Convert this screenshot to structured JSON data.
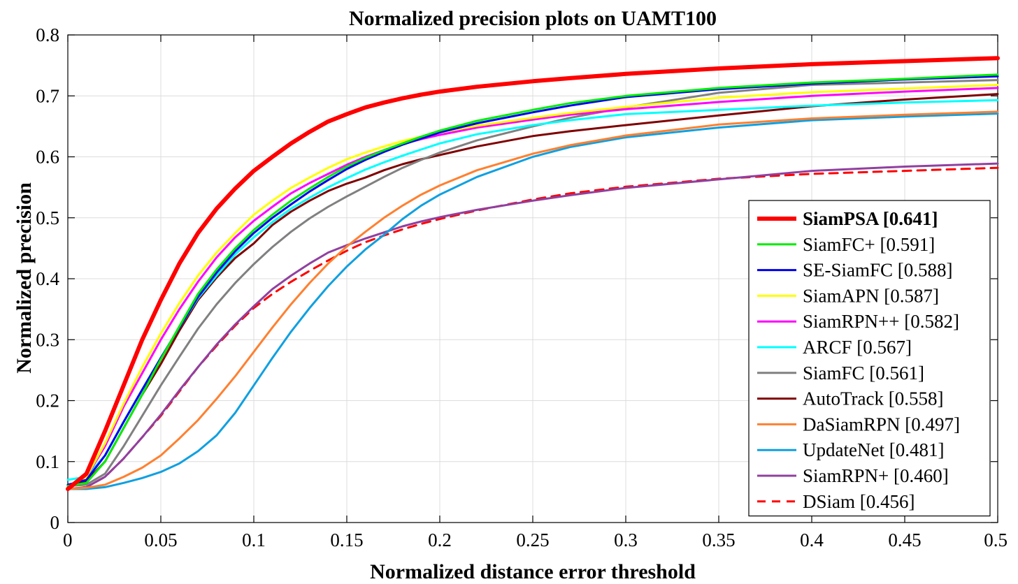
{
  "chart_data": {
    "type": "line",
    "title": "Normalized precision plots on UAMT100",
    "xlabel": "Normalized distance error threshold",
    "ylabel": "Normalized precision",
    "xlim": [
      0,
      0.5
    ],
    "ylim": [
      0,
      0.8
    ],
    "xticks": [
      "0",
      "0.05",
      "0.1",
      "0.15",
      "0.2",
      "0.25",
      "0.3",
      "0.35",
      "0.4",
      "0.45",
      "0.5"
    ],
    "yticks": [
      "0",
      "0.1",
      "0.2",
      "0.3",
      "0.4",
      "0.5",
      "0.6",
      "0.7",
      "0.8"
    ],
    "grid": true,
    "legend_position": "bottom-right",
    "x": [
      0,
      0.01,
      0.02,
      0.03,
      0.04,
      0.05,
      0.06,
      0.07,
      0.08,
      0.09,
      0.1,
      0.11,
      0.12,
      0.13,
      0.14,
      0.15,
      0.16,
      0.17,
      0.18,
      0.19,
      0.2,
      0.22,
      0.25,
      0.27,
      0.3,
      0.35,
      0.4,
      0.45,
      0.5
    ],
    "series": [
      {
        "name": "SiamPSA [0.641]",
        "color": "#ff0000",
        "width": 6,
        "dash": false,
        "bold": true,
        "values": [
          0.055,
          0.08,
          0.15,
          0.225,
          0.3,
          0.365,
          0.425,
          0.475,
          0.515,
          0.548,
          0.577,
          0.6,
          0.622,
          0.641,
          0.658,
          0.67,
          0.681,
          0.689,
          0.696,
          0.702,
          0.707,
          0.715,
          0.724,
          0.729,
          0.736,
          0.745,
          0.752,
          0.757,
          0.762
        ]
      },
      {
        "name": "SiamFC+ [0.591]",
        "color": "#00ee00",
        "width": 3,
        "dash": false,
        "values": [
          0.06,
          0.065,
          0.1,
          0.155,
          0.21,
          0.268,
          0.322,
          0.375,
          0.415,
          0.45,
          0.48,
          0.505,
          0.528,
          0.548,
          0.567,
          0.584,
          0.598,
          0.611,
          0.622,
          0.633,
          0.643,
          0.659,
          0.677,
          0.688,
          0.7,
          0.713,
          0.722,
          0.728,
          0.735
        ]
      },
      {
        "name": "SE-SiamFC [0.588]",
        "color": "#0000ee",
        "width": 3,
        "dash": false,
        "values": [
          0.062,
          0.07,
          0.11,
          0.165,
          0.218,
          0.27,
          0.32,
          0.37,
          0.41,
          0.445,
          0.475,
          0.5,
          0.522,
          0.543,
          0.562,
          0.58,
          0.595,
          0.608,
          0.62,
          0.63,
          0.64,
          0.655,
          0.673,
          0.684,
          0.698,
          0.711,
          0.72,
          0.727,
          0.732
        ]
      },
      {
        "name": "SiamAPN [0.587]",
        "color": "#ffff00",
        "width": 3,
        "dash": false,
        "values": [
          0.06,
          0.075,
          0.13,
          0.195,
          0.255,
          0.31,
          0.36,
          0.405,
          0.443,
          0.475,
          0.505,
          0.528,
          0.549,
          0.566,
          0.582,
          0.596,
          0.607,
          0.617,
          0.626,
          0.633,
          0.64,
          0.651,
          0.664,
          0.672,
          0.682,
          0.697,
          0.706,
          0.712,
          0.718
        ]
      },
      {
        "name": "SiamRPN++ [0.582]",
        "color": "#ff00ff",
        "width": 3,
        "dash": false,
        "values": [
          0.06,
          0.075,
          0.125,
          0.19,
          0.245,
          0.3,
          0.35,
          0.395,
          0.435,
          0.468,
          0.495,
          0.518,
          0.54,
          0.557,
          0.572,
          0.587,
          0.6,
          0.611,
          0.621,
          0.629,
          0.636,
          0.648,
          0.661,
          0.669,
          0.678,
          0.69,
          0.7,
          0.707,
          0.713
        ]
      },
      {
        "name": "ARCF [0.567]",
        "color": "#00ffff",
        "width": 3,
        "dash": false,
        "values": [
          0.07,
          0.075,
          0.11,
          0.165,
          0.218,
          0.27,
          0.32,
          0.368,
          0.405,
          0.44,
          0.468,
          0.493,
          0.515,
          0.533,
          0.55,
          0.565,
          0.579,
          0.591,
          0.602,
          0.612,
          0.622,
          0.637,
          0.652,
          0.66,
          0.67,
          0.677,
          0.684,
          0.689,
          0.693
        ]
      },
      {
        "name": "SiamFC [0.561]",
        "color": "#808080",
        "width": 3,
        "dash": false,
        "values": [
          0.06,
          0.062,
          0.08,
          0.125,
          0.175,
          0.225,
          0.272,
          0.318,
          0.358,
          0.393,
          0.424,
          0.452,
          0.477,
          0.499,
          0.518,
          0.535,
          0.551,
          0.567,
          0.582,
          0.595,
          0.607,
          0.627,
          0.65,
          0.664,
          0.681,
          0.705,
          0.718,
          0.722,
          0.726
        ]
      },
      {
        "name": "AutoTrack [0.558]",
        "color": "#800000",
        "width": 3,
        "dash": false,
        "values": [
          0.06,
          0.068,
          0.1,
          0.155,
          0.21,
          0.26,
          0.315,
          0.365,
          0.402,
          0.434,
          0.458,
          0.488,
          0.51,
          0.528,
          0.544,
          0.556,
          0.566,
          0.578,
          0.588,
          0.596,
          0.603,
          0.617,
          0.634,
          0.642,
          0.652,
          0.668,
          0.683,
          0.694,
          0.703
        ]
      },
      {
        "name": "DaSiamRPN [0.497]",
        "color": "#ff8030",
        "width": 3,
        "dash": false,
        "values": [
          0.055,
          0.057,
          0.062,
          0.075,
          0.09,
          0.11,
          0.138,
          0.168,
          0.203,
          0.24,
          0.28,
          0.32,
          0.358,
          0.393,
          0.425,
          0.453,
          0.477,
          0.5,
          0.52,
          0.538,
          0.553,
          0.578,
          0.605,
          0.619,
          0.635,
          0.653,
          0.663,
          0.669,
          0.674
        ]
      },
      {
        "name": "UpdateNet [0.481]",
        "color": "#10a0e0",
        "width": 3,
        "dash": false,
        "values": [
          0.055,
          0.055,
          0.058,
          0.065,
          0.073,
          0.083,
          0.097,
          0.117,
          0.143,
          0.18,
          0.225,
          0.27,
          0.313,
          0.352,
          0.388,
          0.42,
          0.448,
          0.472,
          0.498,
          0.52,
          0.538,
          0.567,
          0.6,
          0.616,
          0.632,
          0.648,
          0.66,
          0.666,
          0.671
        ]
      },
      {
        "name": "SiamRPN+ [0.460]",
        "color": "#9040a0",
        "width": 3,
        "dash": false,
        "values": [
          0.055,
          0.058,
          0.075,
          0.105,
          0.14,
          0.177,
          0.217,
          0.255,
          0.292,
          0.325,
          0.355,
          0.383,
          0.405,
          0.425,
          0.443,
          0.455,
          0.466,
          0.476,
          0.486,
          0.494,
          0.501,
          0.513,
          0.528,
          0.537,
          0.549,
          0.563,
          0.577,
          0.584,
          0.589
        ]
      },
      {
        "name": "DSiam [0.456]",
        "color": "#ff0000",
        "width": 3,
        "dash": true,
        "values": [
          0.055,
          0.058,
          0.075,
          0.105,
          0.14,
          0.175,
          0.215,
          0.255,
          0.29,
          0.323,
          0.352,
          0.375,
          0.395,
          0.413,
          0.43,
          0.446,
          0.46,
          0.471,
          0.481,
          0.49,
          0.498,
          0.512,
          0.53,
          0.54,
          0.551,
          0.564,
          0.572,
          0.577,
          0.582
        ]
      }
    ]
  }
}
